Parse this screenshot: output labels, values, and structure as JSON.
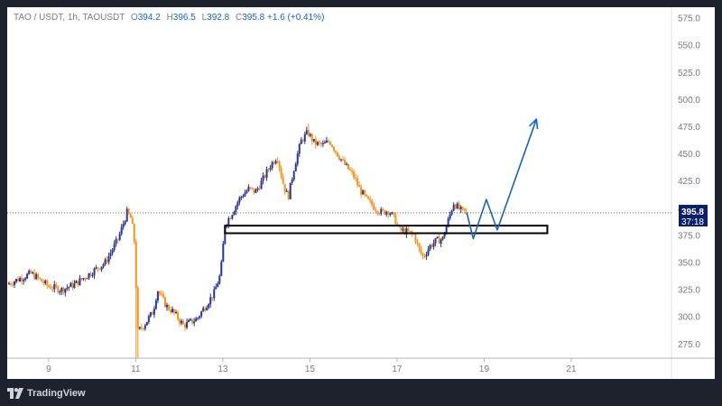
{
  "header": {
    "symbol": "TAO / USDT, 1h, TAOUSDT",
    "open_label": "O",
    "open": "394.2",
    "high_label": "H",
    "high": "396.5",
    "low_label": "L",
    "low": "392.8",
    "close_label": "C",
    "close": "395.8",
    "change": "+1.6 (+0.41%)"
  },
  "price_tag": {
    "price": "395.8",
    "countdown": "37:18"
  },
  "branding": {
    "name": "TradingView"
  },
  "colors": {
    "up": "#283593",
    "down": "#f7931e",
    "axis_text": "#787b86",
    "price_tag": "#0d1f66",
    "projection": "#1565c0",
    "background": "#1e222d"
  },
  "chart_data": {
    "type": "candlestick",
    "timeframe": "1h",
    "x_tick_labels": [
      "9",
      "11",
      "13",
      "15",
      "17",
      "19",
      "21"
    ],
    "y_tick_labels": [
      "275.0",
      "300.0",
      "325.0",
      "350.0",
      "375.0",
      "400.0",
      "425.0",
      "450.0",
      "475.0",
      "500.0",
      "525.0",
      "550.0",
      "575.0"
    ],
    "ylim": [
      262,
      585
    ],
    "xlim": [
      8.05,
      23.3
    ],
    "last_price": 395.8,
    "close_path": [
      {
        "x": 8.05,
        "y": 330
      },
      {
        "x": 8.6,
        "y": 340
      },
      {
        "x": 9.0,
        "y": 328
      },
      {
        "x": 9.3,
        "y": 325
      },
      {
        "x": 9.6,
        "y": 330
      },
      {
        "x": 9.95,
        "y": 340
      },
      {
        "x": 10.3,
        "y": 350
      },
      {
        "x": 10.6,
        "y": 372
      },
      {
        "x": 10.8,
        "y": 396
      },
      {
        "x": 10.9,
        "y": 390
      },
      {
        "x": 11.0,
        "y": 360
      },
      {
        "x": 11.02,
        "y": 285
      },
      {
        "x": 11.2,
        "y": 293
      },
      {
        "x": 11.4,
        "y": 305
      },
      {
        "x": 11.5,
        "y": 325
      },
      {
        "x": 11.7,
        "y": 310
      },
      {
        "x": 11.85,
        "y": 305
      },
      {
        "x": 12.1,
        "y": 292
      },
      {
        "x": 12.4,
        "y": 298
      },
      {
        "x": 12.6,
        "y": 310
      },
      {
        "x": 12.8,
        "y": 322
      },
      {
        "x": 12.95,
        "y": 340
      },
      {
        "x": 13.05,
        "y": 385
      },
      {
        "x": 13.2,
        "y": 395
      },
      {
        "x": 13.4,
        "y": 410
      },
      {
        "x": 13.6,
        "y": 418
      },
      {
        "x": 13.75,
        "y": 415
      },
      {
        "x": 13.9,
        "y": 425
      },
      {
        "x": 14.1,
        "y": 440
      },
      {
        "x": 14.25,
        "y": 448
      },
      {
        "x": 14.4,
        "y": 420
      },
      {
        "x": 14.5,
        "y": 410
      },
      {
        "x": 14.65,
        "y": 440
      },
      {
        "x": 14.8,
        "y": 462
      },
      {
        "x": 14.95,
        "y": 470
      },
      {
        "x": 15.1,
        "y": 460
      },
      {
        "x": 15.3,
        "y": 458
      },
      {
        "x": 15.45,
        "y": 462
      },
      {
        "x": 15.6,
        "y": 452
      },
      {
        "x": 15.8,
        "y": 440
      },
      {
        "x": 16.0,
        "y": 430
      },
      {
        "x": 16.15,
        "y": 417
      },
      {
        "x": 16.3,
        "y": 408
      },
      {
        "x": 16.5,
        "y": 400
      },
      {
        "x": 16.65,
        "y": 396
      },
      {
        "x": 16.8,
        "y": 398
      },
      {
        "x": 16.95,
        "y": 390
      },
      {
        "x": 17.05,
        "y": 380
      },
      {
        "x": 17.25,
        "y": 378
      },
      {
        "x": 17.4,
        "y": 375
      },
      {
        "x": 17.5,
        "y": 362
      },
      {
        "x": 17.6,
        "y": 355
      },
      {
        "x": 17.75,
        "y": 365
      },
      {
        "x": 17.9,
        "y": 370
      },
      {
        "x": 18.05,
        "y": 372
      },
      {
        "x": 18.2,
        "y": 392
      },
      {
        "x": 18.3,
        "y": 405
      },
      {
        "x": 18.45,
        "y": 398
      },
      {
        "x": 18.6,
        "y": 395.8
      }
    ],
    "support_zone": {
      "x_start": 13.05,
      "x_end": 20.45,
      "y_low": 377,
      "y_high": 384
    },
    "projection_path": [
      {
        "x": 18.6,
        "y": 396
      },
      {
        "x": 18.75,
        "y": 372
      },
      {
        "x": 19.05,
        "y": 408
      },
      {
        "x": 19.3,
        "y": 380
      },
      {
        "x": 20.2,
        "y": 482
      }
    ]
  }
}
